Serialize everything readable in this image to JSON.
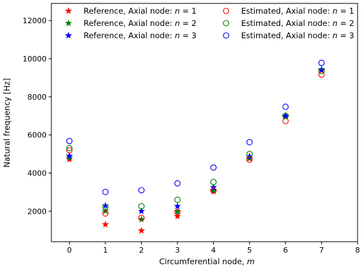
{
  "chart_data": {
    "type": "scatter",
    "title": "",
    "xlabel": "Circumferential node,",
    "xlabel_var": "m",
    "ylabel": "Natural frequency [Hz]",
    "xlim": [
      -0.5,
      8.0
    ],
    "ylim": [
      400,
      12900
    ],
    "xticks": [
      0,
      1,
      2,
      3,
      4,
      5,
      6,
      7,
      8
    ],
    "xtick_labels": [
      "0",
      "1",
      "2",
      "3",
      "4",
      "5",
      "6",
      "7",
      "8"
    ],
    "yticks": [
      2000,
      4000,
      6000,
      8000,
      10000,
      12000
    ],
    "ytick_labels": [
      "2000",
      "4000",
      "6000",
      "8000",
      "10000",
      "12000"
    ],
    "grid": false,
    "legend_position": "top-right",
    "legend_columns": 2,
    "series": [
      {
        "name": "Reference, Axial node: n = 1",
        "name_prefix": "Reference, Axial node: ",
        "name_var": "n",
        "name_suffix": " = 1",
        "marker": "star",
        "color": "#ff0000",
        "x": [
          0,
          1,
          2,
          3,
          4,
          5,
          6,
          7
        ],
        "y": [
          4720,
          1300,
          980,
          1730,
          3040,
          4760,
          6950,
          9390
        ]
      },
      {
        "name": "Reference, Axial node: n = 2",
        "name_prefix": "Reference, Axial node: ",
        "name_var": "n",
        "name_suffix": " = 2",
        "marker": "star",
        "color": "#008000",
        "x": [
          0,
          1,
          2,
          3,
          4,
          5,
          6,
          7
        ],
        "y": [
          4810,
          2010,
          1570,
          1980,
          3090,
          4790,
          6980,
          9410
        ]
      },
      {
        "name": "Reference, Axial node: n = 3",
        "name_prefix": "Reference, Axial node: ",
        "name_var": "n",
        "name_suffix": " = 3",
        "marker": "star",
        "color": "#0000ff",
        "x": [
          0,
          1,
          2,
          3,
          4,
          5,
          6,
          7
        ],
        "y": [
          4900,
          2290,
          2000,
          2260,
          3250,
          4870,
          7010,
          9430
        ]
      },
      {
        "name": "Estimated, Axial node: n = 1",
        "name_prefix": "Estimated, Axial node: ",
        "name_var": "n",
        "name_suffix": " = 1",
        "marker": "circle",
        "color": "#ff0000",
        "x": [
          0,
          1,
          2,
          3,
          4,
          5,
          6,
          7
        ],
        "y": [
          5200,
          1880,
          1650,
          1950,
          3080,
          4700,
          6730,
          9160
        ]
      },
      {
        "name": "Estimated, Axial node: n = 2",
        "name_prefix": "Estimated, Axial node: ",
        "name_var": "n",
        "name_suffix": " = 2",
        "marker": "circle",
        "color": "#008000",
        "x": [
          0,
          1,
          2,
          3,
          4,
          5,
          6,
          7
        ],
        "y": [
          5310,
          2210,
          2260,
          2600,
          3530,
          5000,
          7000,
          9350
        ]
      },
      {
        "name": "Estimated, Axial node: n = 3",
        "name_prefix": "Estimated, Axial node: ",
        "name_var": "n",
        "name_suffix": " = 3",
        "marker": "circle",
        "color": "#0000ff",
        "x": [
          0,
          1,
          2,
          3,
          4,
          5,
          6,
          7
        ],
        "y": [
          5680,
          3010,
          3100,
          3460,
          4290,
          5620,
          7480,
          9780
        ]
      }
    ]
  }
}
